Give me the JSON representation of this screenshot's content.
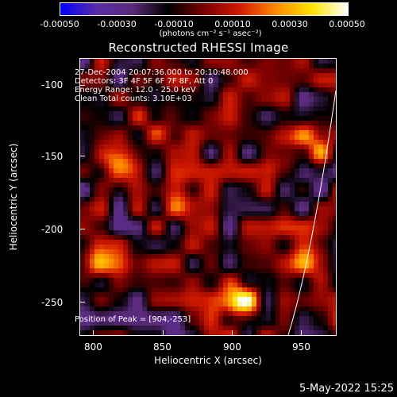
{
  "colorbar": {
    "ticks": [
      "-0.00050",
      "-0.00030",
      "-0.00010",
      "0.00010",
      "0.00030",
      "0.00050"
    ],
    "unit_label": "(photons cm⁻² s⁻¹ asec⁻²)",
    "range": [
      -0.0005,
      0.0005
    ],
    "colors": [
      "#0000ff",
      "#5a2ca8",
      "#5a2b7a",
      "#000000",
      "#7a0000",
      "#d41a00",
      "#ff8a00",
      "#ffe300",
      "#ffffff"
    ]
  },
  "title": "Reconstructed RHESSI Image",
  "info": {
    "time_range": "27-Dec-2004 20:07:36.000 to 20:10:48.000",
    "detectors": "Detectors: 3F 4F 5F 6F 7F 8F, Att 0",
    "energy": "Energy Range: 12.0 - 25.0 keV",
    "clean": "Clean     Total counts: 3.10E+03",
    "peak": "Position of Peak = [904,-253]"
  },
  "axes": {
    "xlabel": "Heliocentric X (arcsec)",
    "ylabel": "Heliocentric Y (arcsec)",
    "xticks": [
      "800",
      "850",
      "900",
      "950"
    ],
    "yticks": [
      "-100",
      "-150",
      "-200",
      "-250"
    ],
    "xlim": [
      778,
      970
    ],
    "ylim": [
      -275,
      -75
    ]
  },
  "peak": {
    "x": 904,
    "y": -253
  },
  "footer": {
    "date": "5-May-2022 15:25"
  }
}
